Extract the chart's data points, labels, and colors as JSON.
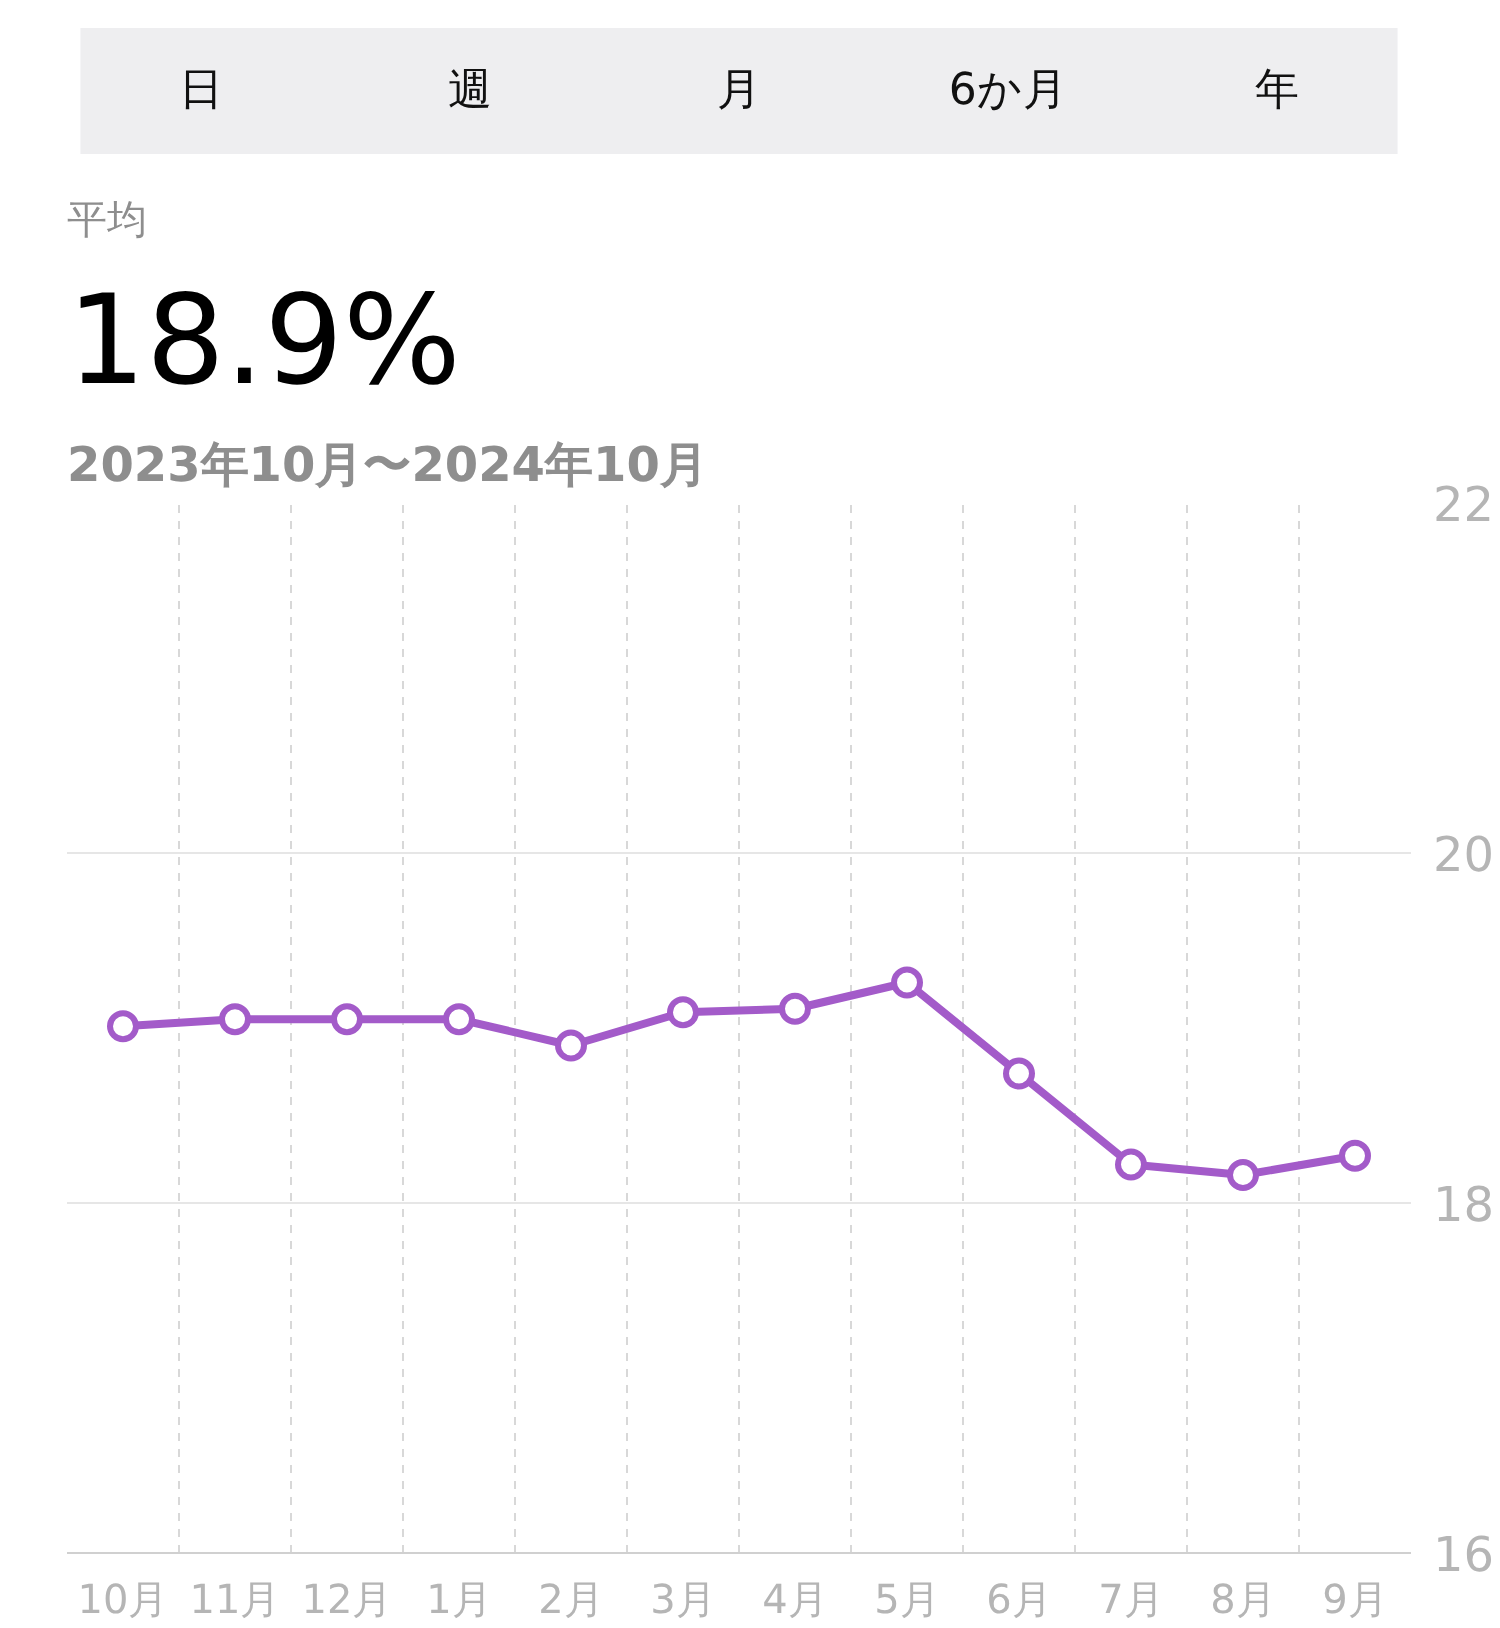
{
  "chart_data": [
    {
      "type": "other",
      "annotations": [
        "日",
        "週",
        "月",
        "6か月",
        "年"
      ]
    },
    {
      "type": "line",
      "title": "18.9%",
      "subtitle": "2023年10月〜2024年10月",
      "annotations": [
        "平均"
      ],
      "categories": [
        "10月",
        "11月",
        "12月",
        "1月",
        "2月",
        "3月",
        "4月",
        "5月",
        "6月",
        "7月",
        "8月",
        "9月"
      ],
      "series": [
        {
          "color": "#a35bc9",
          "values": [
            19.01,
            19.05,
            19.05,
            19.05,
            18.9,
            19.09,
            19.11,
            19.26,
            18.74,
            18.22,
            18.16,
            18.27
          ]
        }
      ],
      "ylim": [
        16,
        22
      ],
      "yticks": [
        16,
        18,
        20,
        22
      ],
      "grid": true,
      "marker": "circle",
      "line_style": "solid"
    }
  ]
}
